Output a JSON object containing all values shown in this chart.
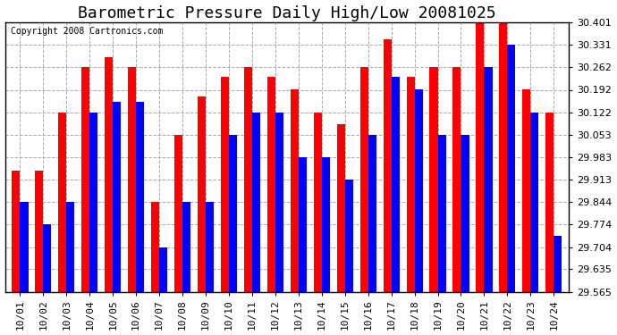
{
  "title": "Barometric Pressure Daily High/Low 20081025",
  "copyright": "Copyright 2008 Cartronics.com",
  "categories": [
    "10/01",
    "10/02",
    "10/03",
    "10/04",
    "10/05",
    "10/06",
    "10/07",
    "10/08",
    "10/09",
    "10/10",
    "10/11",
    "10/12",
    "10/13",
    "10/14",
    "10/15",
    "10/16",
    "10/17",
    "10/18",
    "10/19",
    "10/20",
    "10/21",
    "10/22",
    "10/23",
    "10/24"
  ],
  "highs": [
    29.94,
    29.94,
    30.122,
    30.262,
    30.292,
    30.262,
    29.844,
    30.053,
    30.172,
    30.232,
    30.262,
    30.232,
    30.192,
    30.122,
    30.085,
    30.262,
    30.35,
    30.232,
    30.262,
    30.262,
    30.401,
    30.401,
    30.192,
    30.122
  ],
  "lows": [
    29.844,
    29.774,
    29.844,
    30.122,
    30.155,
    30.155,
    29.704,
    29.844,
    29.844,
    30.053,
    30.122,
    30.122,
    29.983,
    29.983,
    29.913,
    30.053,
    30.232,
    30.192,
    30.053,
    30.053,
    30.262,
    30.331,
    30.122,
    29.74
  ],
  "high_color": "#FF0000",
  "low_color": "#0000FF",
  "bg_color": "#FFFFFF",
  "plot_bg_color": "#FFFFFF",
  "grid_color": "#AAAAAA",
  "ymin": 29.565,
  "ymax": 30.401,
  "yticks": [
    29.565,
    29.635,
    29.704,
    29.774,
    29.844,
    29.913,
    29.983,
    30.053,
    30.122,
    30.192,
    30.262,
    30.331,
    30.401
  ],
  "title_fontsize": 13,
  "copyright_fontsize": 7,
  "tick_fontsize": 8,
  "bar_width": 0.35
}
